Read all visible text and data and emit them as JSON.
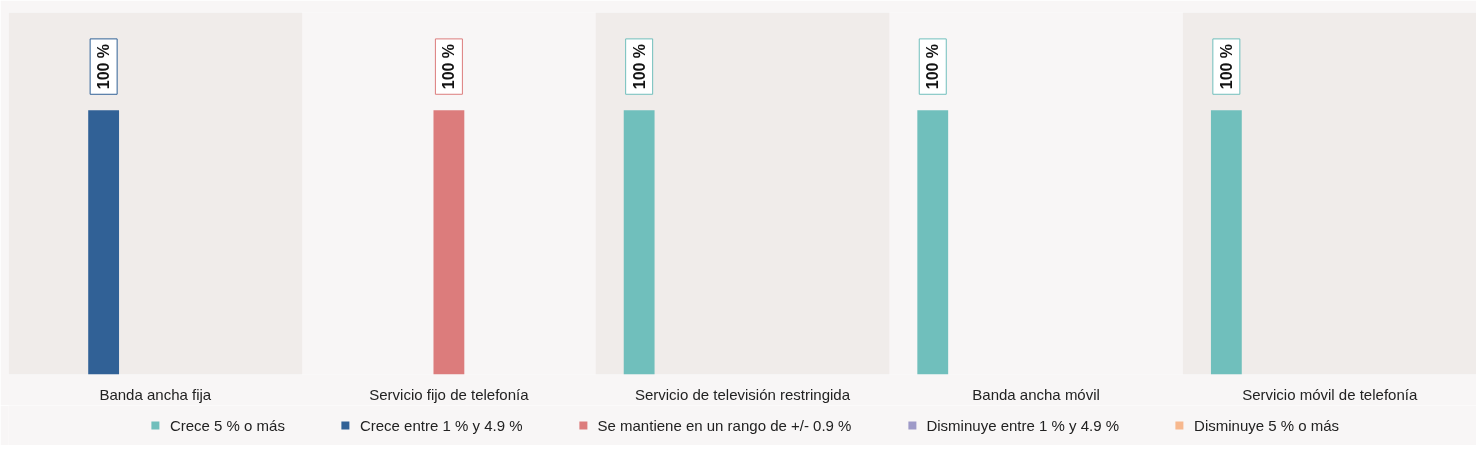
{
  "chart_data": {
    "type": "bar",
    "categories": [
      "Banda ancha fija",
      "Servicio fijo de telefonía",
      "Servicio de televisión restringida",
      "Banda ancha móvil",
      "Servicio móvil de telefonía"
    ],
    "series": [
      {
        "name": "Crece 5 % o más",
        "color": "#70bfbc",
        "values": [
          null,
          null,
          100,
          100,
          100
        ],
        "value_labels": [
          null,
          null,
          "100 %",
          "100 %",
          "100 %"
        ]
      },
      {
        "name": "Crece entre 1 % y 4.9 %",
        "color": "#316196",
        "values": [
          100,
          null,
          null,
          null,
          null
        ],
        "value_labels": [
          "100 %",
          null,
          null,
          null,
          null
        ]
      },
      {
        "name": "Se mantiene en un rango de +/- 0.9 %",
        "color": "#dc7c7c",
        "values": [
          null,
          100,
          null,
          null,
          null
        ],
        "value_labels": [
          null,
          "100 %",
          null,
          null,
          null
        ]
      },
      {
        "name": "Disminuye entre 1 % y 4.9 %",
        "color": "#9e9ac8",
        "values": [
          null,
          null,
          null,
          null,
          null
        ],
        "value_labels": [
          null,
          null,
          null,
          null,
          null
        ]
      },
      {
        "name": "Disminuye 5 % o más",
        "color": "#f7b88e",
        "values": [
          null,
          null,
          null,
          null,
          null
        ],
        "value_labels": [
          null,
          null,
          null,
          null,
          null
        ]
      }
    ],
    "tick_labels": "x",
    "legend": "bottom"
  }
}
